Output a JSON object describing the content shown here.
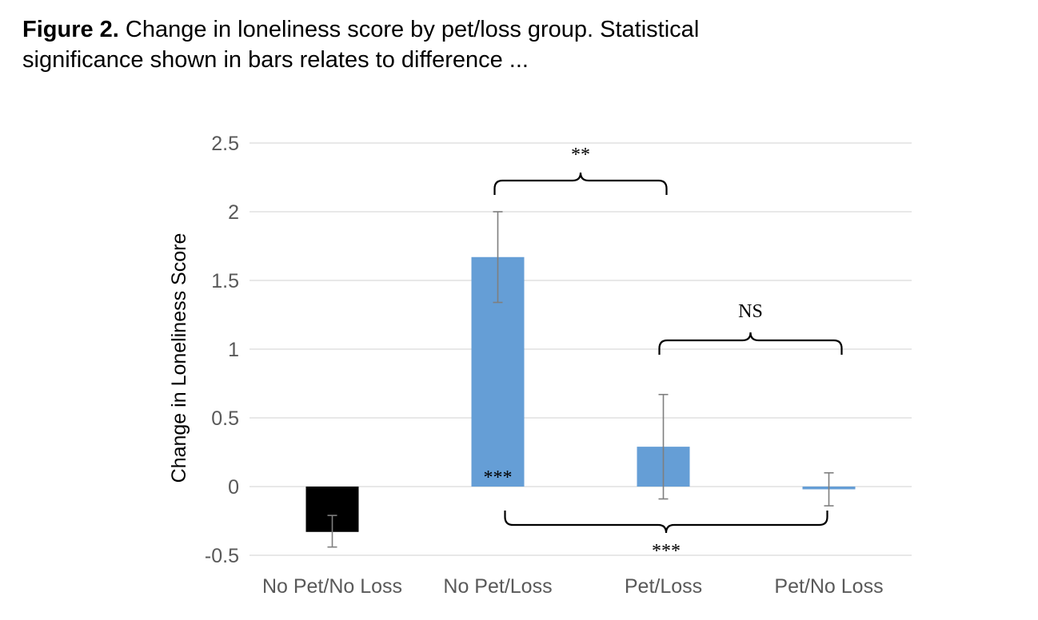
{
  "caption": {
    "label": "Figure 2.",
    "text": " Change in loneliness score by pet/loss group. Statistical significance shown in bars relates to difference ..."
  },
  "chart_data": {
    "type": "bar",
    "ylabel": "Change in Loneliness Score",
    "xlabel": "",
    "ylim": [
      -0.5,
      2.5
    ],
    "yticks": [
      -0.5,
      0,
      0.5,
      1,
      1.5,
      2,
      2.5
    ],
    "ytick_labels": [
      "-0.5",
      "0",
      "0.5",
      "1",
      "1.5",
      "2",
      "2.5"
    ],
    "grid": true,
    "categories": [
      "No Pet/No Loss",
      "No Pet/Loss",
      "Pet/Loss",
      "Pet/No Loss"
    ],
    "values": [
      -0.33,
      1.67,
      0.29,
      -0.02
    ],
    "error_low": [
      -0.44,
      1.34,
      -0.09,
      -0.14
    ],
    "error_high": [
      -0.21,
      2.0,
      0.67,
      0.1
    ],
    "colors": [
      "#000000",
      "#659ED6",
      "#659ED6",
      "#659ED6"
    ],
    "bar_annotations": [
      {
        "category": "No Pet/Loss",
        "text": "***"
      }
    ],
    "comparisons": [
      {
        "from": "No Pet/Loss",
        "to": "Pet/Loss",
        "text": "**",
        "position": "above"
      },
      {
        "from": "Pet/Loss",
        "to": "Pet/No Loss",
        "text": "NS",
        "position": "above"
      },
      {
        "from": "No Pet/Loss",
        "to": "Pet/No Loss",
        "text": "***",
        "position": "below"
      }
    ]
  }
}
